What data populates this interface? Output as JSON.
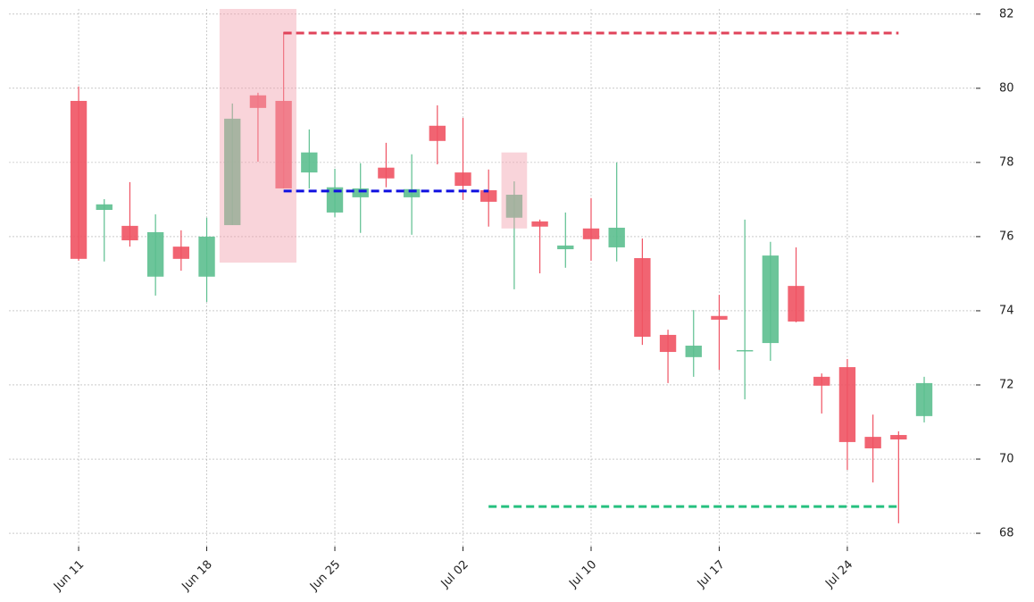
{
  "chart_data": {
    "type": "candlestick",
    "x": [
      0,
      1,
      2,
      3,
      4,
      5,
      6,
      7,
      8,
      9,
      10,
      11,
      12,
      13,
      14,
      15,
      16,
      17,
      18,
      19,
      20,
      21,
      22,
      23,
      24,
      25,
      26,
      27,
      28,
      29,
      30,
      31,
      32,
      33
    ],
    "open": [
      79.66,
      76.72,
      76.29,
      74.92,
      75.73,
      74.92,
      76.31,
      79.81,
      79.66,
      77.73,
      76.65,
      77.06,
      77.86,
      77.06,
      78.99,
      77.73,
      77.25,
      76.51,
      76.41,
      75.66,
      76.22,
      75.71,
      75.42,
      73.35,
      72.75,
      73.86,
      72.92,
      73.13,
      74.67,
      72.22,
      72.48,
      70.6,
      70.65,
      71.16
    ],
    "high": [
      80.05,
      77.01,
      77.47,
      76.6,
      76.17,
      76.51,
      79.59,
      79.88,
      81.52,
      78.89,
      77.83,
      77.98,
      78.53,
      78.22,
      79.54,
      79.2,
      77.81,
      77.49,
      76.46,
      76.65,
      77.04,
      78.0,
      75.95,
      73.49,
      74.02,
      74.43,
      76.46,
      75.86,
      75.71,
      72.31,
      72.7,
      71.2,
      70.75,
      72.22
    ],
    "low": [
      75.35,
      75.33,
      75.73,
      74.41,
      75.08,
      74.24,
      76.31,
      78.02,
      77.3,
      77.3,
      76.53,
      76.1,
      77.33,
      76.05,
      77.95,
      76.99,
      76.27,
      74.58,
      75.01,
      75.16,
      75.35,
      75.33,
      73.08,
      72.05,
      72.22,
      72.41,
      71.61,
      72.65,
      73.69,
      71.23,
      69.71,
      69.37,
      68.27,
      70.99
    ],
    "close": [
      75.4,
      76.87,
      75.9,
      76.12,
      75.4,
      76.0,
      79.18,
      79.47,
      77.3,
      78.27,
      77.33,
      77.3,
      77.57,
      77.28,
      78.58,
      77.37,
      76.94,
      77.13,
      76.27,
      75.76,
      75.93,
      76.24,
      73.3,
      72.89,
      73.06,
      73.76,
      72.94,
      75.49,
      73.71,
      71.98,
      70.46,
      70.29,
      70.53,
      72.05
    ],
    "up_color": "#5cbf8f",
    "down_color": "#ef5363",
    "xlim": [
      -2.72,
      35.02
    ],
    "xticks": [
      {
        "value": 0,
        "label": "Jun 11"
      },
      {
        "value": 5,
        "label": "Jun 18"
      },
      {
        "value": 10,
        "label": "Jun 25"
      },
      {
        "value": 15,
        "label": "Jul 02"
      },
      {
        "value": 20,
        "label": "Jul 10"
      },
      {
        "value": 25,
        "label": "Jul 17"
      },
      {
        "value": 30,
        "label": "Jul 24"
      }
    ],
    "ylim": [
      67.64,
      82.14
    ],
    "yticks": [
      68,
      70,
      72,
      74,
      76,
      78,
      80,
      82
    ],
    "grid": true,
    "highlights": [
      {
        "x": [
          5.5,
          8.5
        ],
        "y": [
          75.3,
          82.14
        ],
        "color": "#f2a0ad"
      },
      {
        "x": [
          16.5,
          17.5
        ],
        "y": [
          76.22,
          78.27
        ],
        "color": "#f2a0ad"
      }
    ],
    "levels": [
      {
        "value": 81.49,
        "x": [
          8,
          32
        ],
        "color": "#e0435a"
      },
      {
        "value": 77.23,
        "x": [
          8,
          16
        ],
        "color": "#1010e0"
      },
      {
        "value": 68.72,
        "x": [
          16,
          32
        ],
        "color": "#26c07f"
      }
    ]
  }
}
